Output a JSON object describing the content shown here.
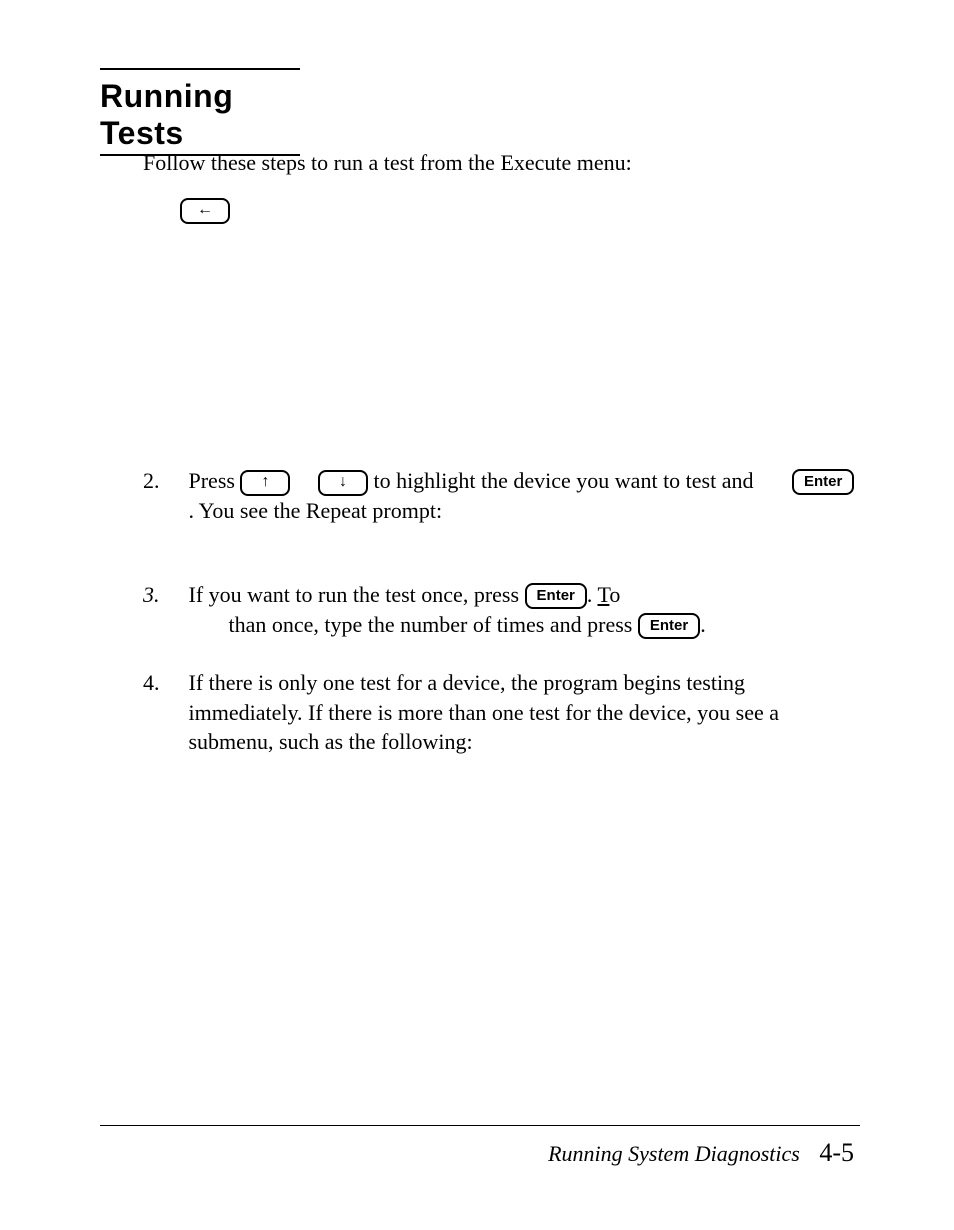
{
  "section_rule": " ",
  "section_title": "Running Tests",
  "intro": "Follow these steps to run a test from the Execute menu:",
  "keys": {
    "left_arrow": "←",
    "up_arrow": "↑",
    "down_arrow": "↓",
    "enter": "Enter"
  },
  "steps": {
    "s2": {
      "num": "2.",
      "t1": "Press ",
      "t2": " to highlight the device you want to test and ",
      "t3": ". You see the Repeat prompt:"
    },
    "s3": {
      "num": "3.",
      "t1": "If you want to run the test once, press ",
      "t2a": ". ",
      "t2b_T": "T",
      "t2c": "o",
      "t3": "than once, type the number of times and press ",
      "t4": "."
    },
    "s4": {
      "num": "4.",
      "text": "If there is only one test for a device, the program begins testing immediately. If there is more than one test for the device, you see a submenu, such as the following:"
    }
  },
  "footer": {
    "title": "Running System Diagnostics",
    "page": "4-5"
  },
  "colors": {
    "text": "#000000",
    "background": "#ffffff"
  }
}
